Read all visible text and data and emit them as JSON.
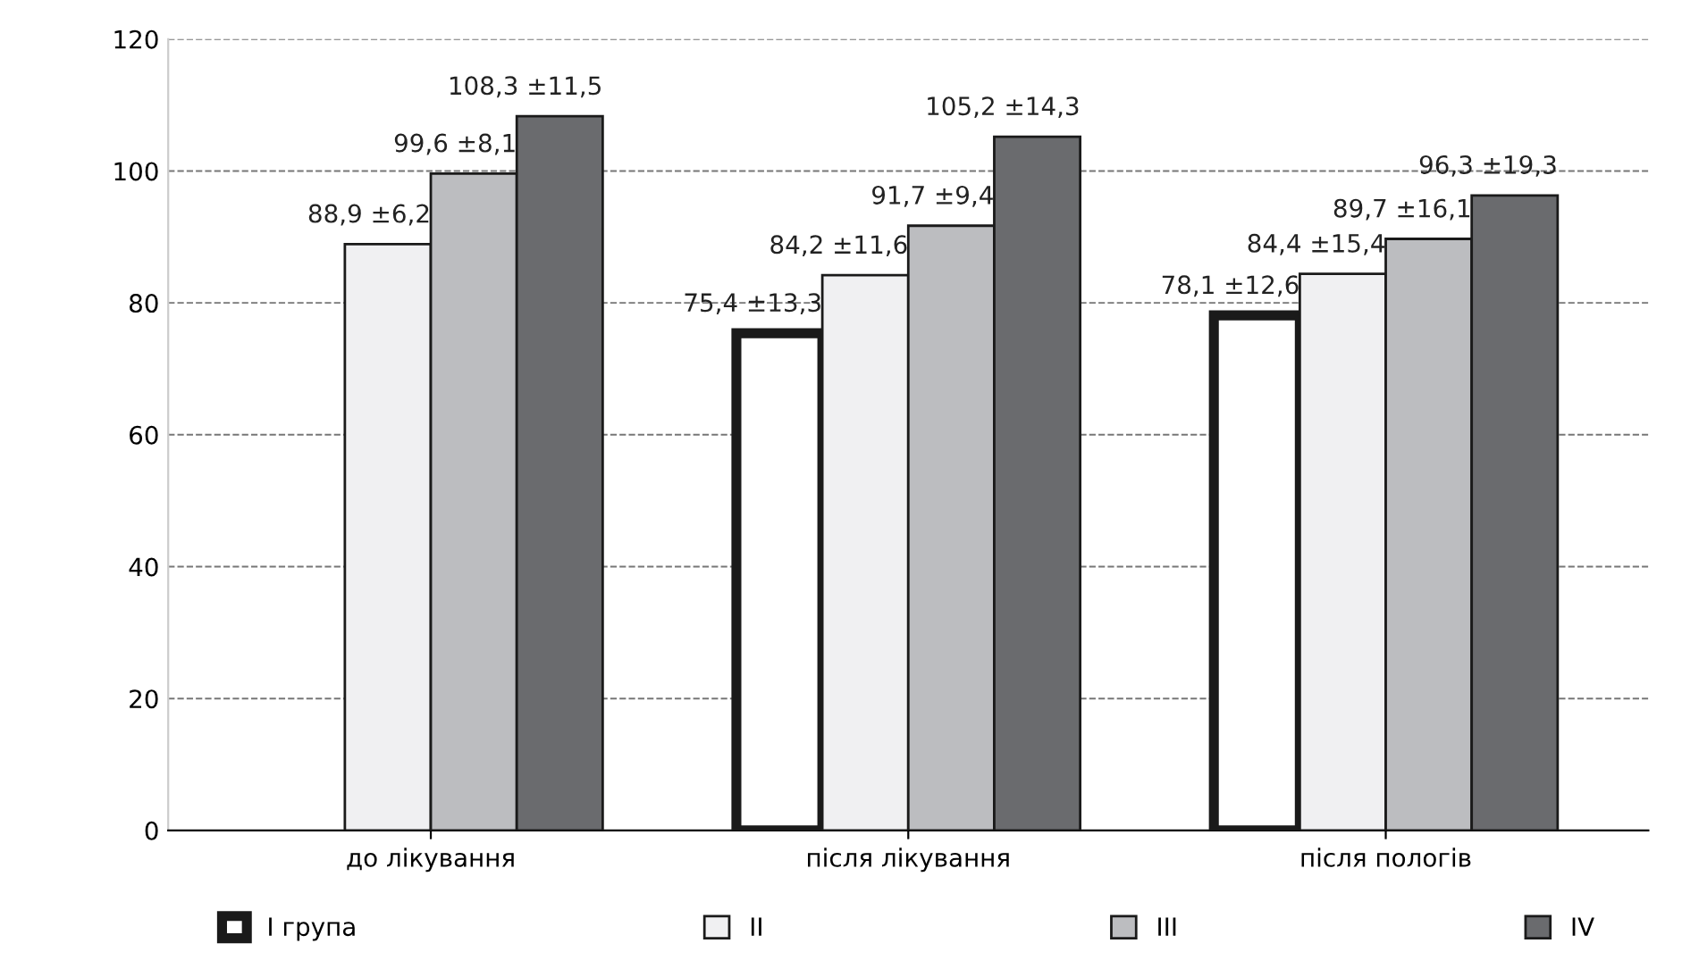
{
  "chart_data": {
    "type": "bar",
    "categories": [
      "до лікування",
      "після лікування",
      "після пологів"
    ],
    "series": [
      {
        "name": "I група",
        "color": "#ffffff",
        "values": [
          null,
          75.4,
          78.1
        ],
        "value_labels": [
          null,
          "75,4 ±13,3",
          "78,1 ±12,6"
        ]
      },
      {
        "name": "II",
        "color": "#f0f0f2",
        "values": [
          88.9,
          84.2,
          84.4
        ],
        "value_labels": [
          "88,9 ±6,2",
          "84,2 ±11,6",
          "84,4 ±15,4"
        ]
      },
      {
        "name": "III",
        "color": "#bcbdc0",
        "values": [
          99.6,
          91.7,
          89.7
        ],
        "value_labels": [
          "99,6 ±8,1",
          "91,7 ±9,4",
          "89,7 ±16,1"
        ]
      },
      {
        "name": "IV",
        "color": "#6a6b6e",
        "values": [
          108.3,
          105.2,
          96.3
        ],
        "value_labels": [
          "108,3 ±11,5",
          "105,2 ±14,3",
          "96,3 ±19,3"
        ]
      }
    ],
    "ylim": [
      0,
      120
    ],
    "yticks": [
      0,
      20,
      40,
      60,
      80,
      100,
      120
    ],
    "grid": "y",
    "legend": "bottom"
  }
}
